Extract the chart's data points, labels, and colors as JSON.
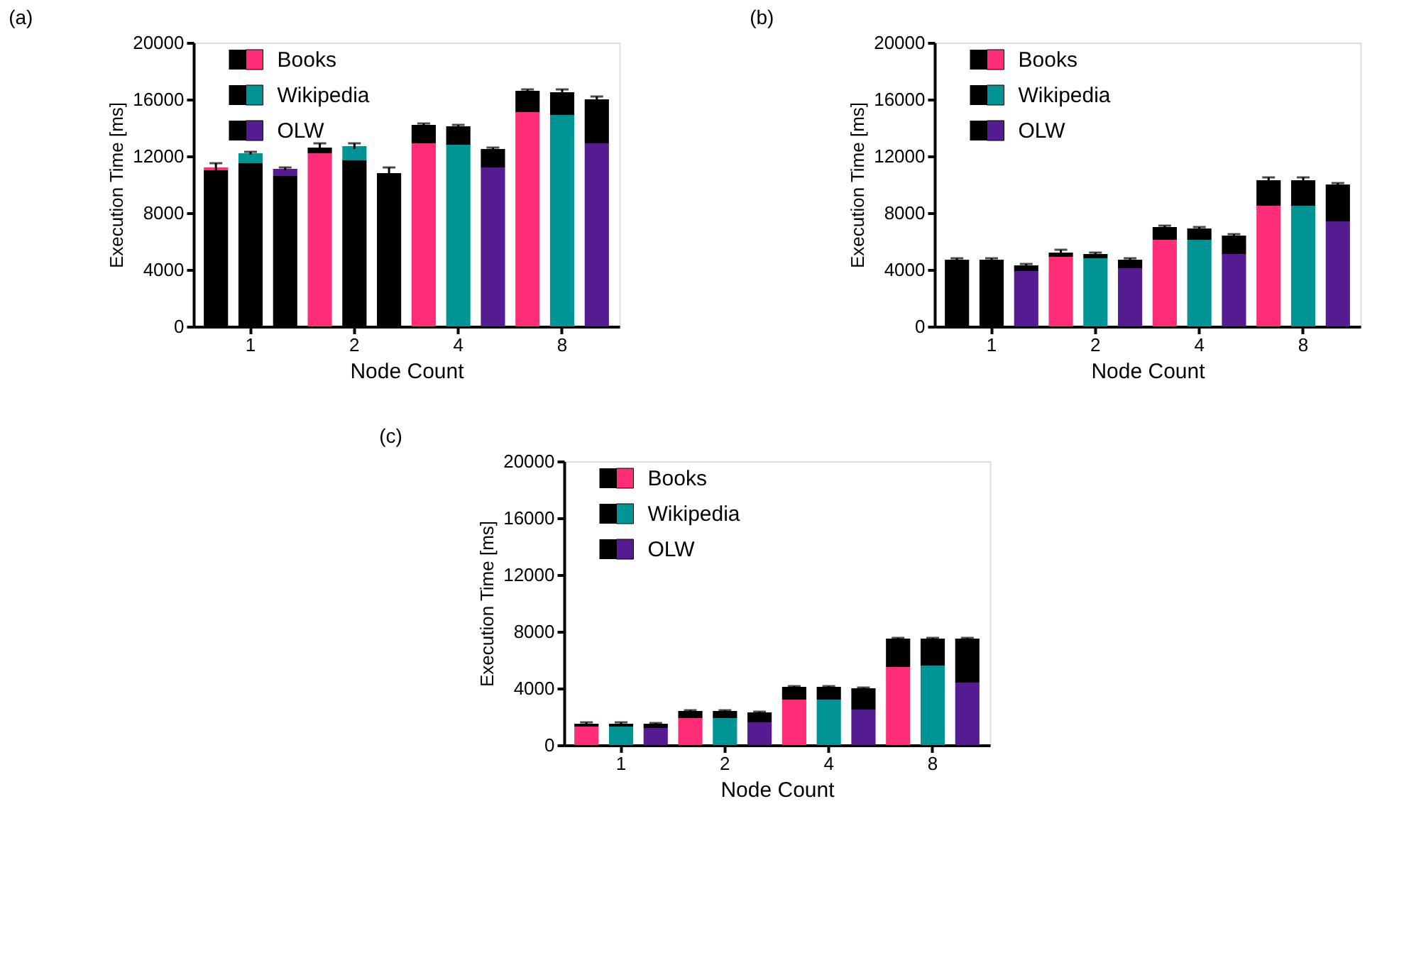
{
  "chart_data": [
    {
      "type": "bar",
      "stacked": true,
      "title": "(a)",
      "categories": [
        null,
        "1",
        null,
        null,
        "2",
        null,
        null,
        "4",
        null,
        null,
        "8",
        null
      ],
      "xlabel": "Node Count",
      "ylabel": "Execution Time [ms]",
      "ylim": [
        0,
        20000
      ],
      "yticks": [
        0,
        4000,
        8000,
        12000,
        16000,
        20000
      ],
      "grid": false,
      "legend": "top left",
      "series": [
        {
          "color": "#000000",
          "values": [
            11000,
            11500,
            10600,
            0,
            11700,
            10800,
            0,
            0,
            0,
            0,
            0,
            0
          ]
        },
        {
          "name": "Books",
          "color": "#ff2d78",
          "values": [
            200,
            null,
            null,
            12200,
            null,
            null,
            12900,
            null,
            null,
            15100,
            null,
            null
          ]
        },
        {
          "name": "Wikipedia",
          "color": "#009494",
          "values": [
            null,
            700,
            null,
            null,
            1000,
            null,
            null,
            12800,
            null,
            null,
            14900,
            null
          ]
        },
        {
          "name": "OLW",
          "color": "#551c91",
          "values": [
            null,
            null,
            500,
            null,
            null,
            0,
            null,
            null,
            11200,
            null,
            null,
            12900
          ]
        },
        {
          "color": "#000000",
          "values": [
            0,
            0,
            0,
            400,
            0,
            0,
            1300,
            1300,
            1300,
            1500,
            1600,
            3100
          ],
          "errors": [
            300,
            100,
            100,
            300,
            200,
            400,
            100,
            100,
            100,
            100,
            200,
            200
          ]
        }
      ]
    },
    {
      "type": "bar",
      "stacked": true,
      "title": "(b)",
      "categories": [
        null,
        "1",
        null,
        null,
        "2",
        null,
        null,
        "4",
        null,
        null,
        "8",
        null
      ],
      "xlabel": "Node Count",
      "ylabel": "Execution Time [ms]",
      "ylim": [
        0,
        20000
      ],
      "yticks": [
        0,
        4000,
        8000,
        12000,
        16000,
        20000
      ],
      "legend": "top left",
      "series": [
        {
          "color": "#000000",
          "values": [
            4700,
            4700,
            0,
            0,
            0,
            0,
            0,
            0,
            0,
            0,
            0,
            0
          ]
        },
        {
          "name": "Books",
          "color": "#ff2d78",
          "values": [
            0,
            null,
            null,
            4900,
            null,
            null,
            6100,
            null,
            null,
            8500,
            null,
            null
          ]
        },
        {
          "name": "Wikipedia",
          "color": "#009494",
          "values": [
            null,
            0,
            null,
            null,
            4800,
            null,
            null,
            6100,
            null,
            null,
            8500,
            null
          ]
        },
        {
          "name": "OLW",
          "color": "#551c91",
          "values": [
            null,
            null,
            3900,
            null,
            null,
            4100,
            null,
            null,
            5100,
            null,
            null,
            7400
          ]
        },
        {
          "color": "#000000",
          "values": [
            0,
            0,
            400,
            300,
            300,
            600,
            900,
            800,
            1300,
            1800,
            1800,
            2600
          ],
          "errors": [
            100,
            100,
            100,
            200,
            100,
            100,
            100,
            100,
            100,
            200,
            200,
            100
          ]
        }
      ]
    },
    {
      "type": "bar",
      "stacked": true,
      "title": "(c)",
      "categories": [
        null,
        "1",
        null,
        null,
        "2",
        null,
        null,
        "4",
        null,
        null,
        "8",
        null
      ],
      "xlabel": "Node Count",
      "ylabel": "Execution Time [ms]",
      "ylim": [
        0,
        20000
      ],
      "yticks": [
        0,
        4000,
        8000,
        12000,
        16000,
        20000
      ],
      "legend": "top left",
      "series": [
        {
          "name": "Books",
          "color": "#ff2d78",
          "values": [
            1300,
            null,
            null,
            1900,
            null,
            null,
            3200,
            null,
            null,
            5500,
            null,
            null
          ]
        },
        {
          "name": "Wikipedia",
          "color": "#009494",
          "values": [
            null,
            1300,
            null,
            null,
            1900,
            null,
            null,
            3200,
            null,
            null,
            5600,
            null
          ]
        },
        {
          "name": "OLW",
          "color": "#551c91",
          "values": [
            null,
            null,
            1200,
            null,
            null,
            1600,
            null,
            null,
            2500,
            null,
            null,
            4400
          ]
        },
        {
          "color": "#000000",
          "values": [
            200,
            200,
            300,
            500,
            500,
            700,
            900,
            900,
            1500,
            2000,
            1900,
            3100
          ],
          "errors": [
            100,
            100,
            50,
            50,
            50,
            50,
            50,
            50,
            50,
            50,
            50,
            50
          ]
        }
      ]
    }
  ]
}
